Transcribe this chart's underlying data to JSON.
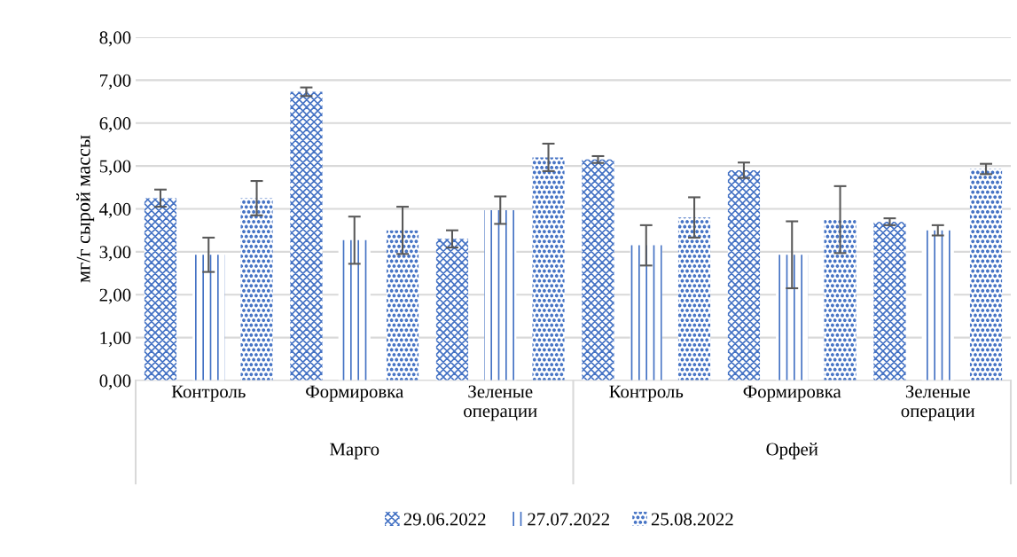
{
  "chart_data": {
    "type": "bar",
    "ylabel": "мг/г сырой массы",
    "categories": [
      "Контроль",
      "Формировка",
      "Зеленые\nоперации",
      "Контроль",
      "Формировка",
      "Зеленые\nоперации"
    ],
    "annotations": [
      "Марго",
      "Орфей"
    ],
    "series": [
      {
        "name": "29.06.2022",
        "color": "#4472c4",
        "values": [
          4.25,
          6.73,
          3.3,
          5.15,
          4.9,
          3.7
        ],
        "errors": [
          0.2,
          0.1,
          0.2,
          0.08,
          0.18,
          0.08
        ]
      },
      {
        "name": "27.07.2022",
        "color": "#4472c4",
        "values": [
          2.93,
          3.27,
          3.97,
          3.15,
          2.93,
          3.5
        ],
        "errors": [
          0.4,
          0.55,
          0.32,
          0.47,
          0.78,
          0.12
        ]
      },
      {
        "name": "25.08.2022",
        "color": "#4472c4",
        "values": [
          4.25,
          3.5,
          5.2,
          3.8,
          3.75,
          4.93
        ],
        "errors": [
          0.4,
          0.55,
          0.32,
          0.47,
          0.78,
          0.12
        ]
      }
    ],
    "ylim": [
      0,
      8
    ],
    "yticks": [
      {
        "value": 0,
        "label": "0,00"
      },
      {
        "value": 1,
        "label": "1,00"
      },
      {
        "value": 2,
        "label": "2,00"
      },
      {
        "value": 3,
        "label": "3,00"
      },
      {
        "value": 4,
        "label": "4,00"
      },
      {
        "value": 5,
        "label": "5,00"
      },
      {
        "value": 6,
        "label": "6,00"
      },
      {
        "value": 7,
        "label": "7,00"
      },
      {
        "value": 8,
        "label": "8,00"
      }
    ],
    "grid": "y",
    "legend": "bottom"
  }
}
